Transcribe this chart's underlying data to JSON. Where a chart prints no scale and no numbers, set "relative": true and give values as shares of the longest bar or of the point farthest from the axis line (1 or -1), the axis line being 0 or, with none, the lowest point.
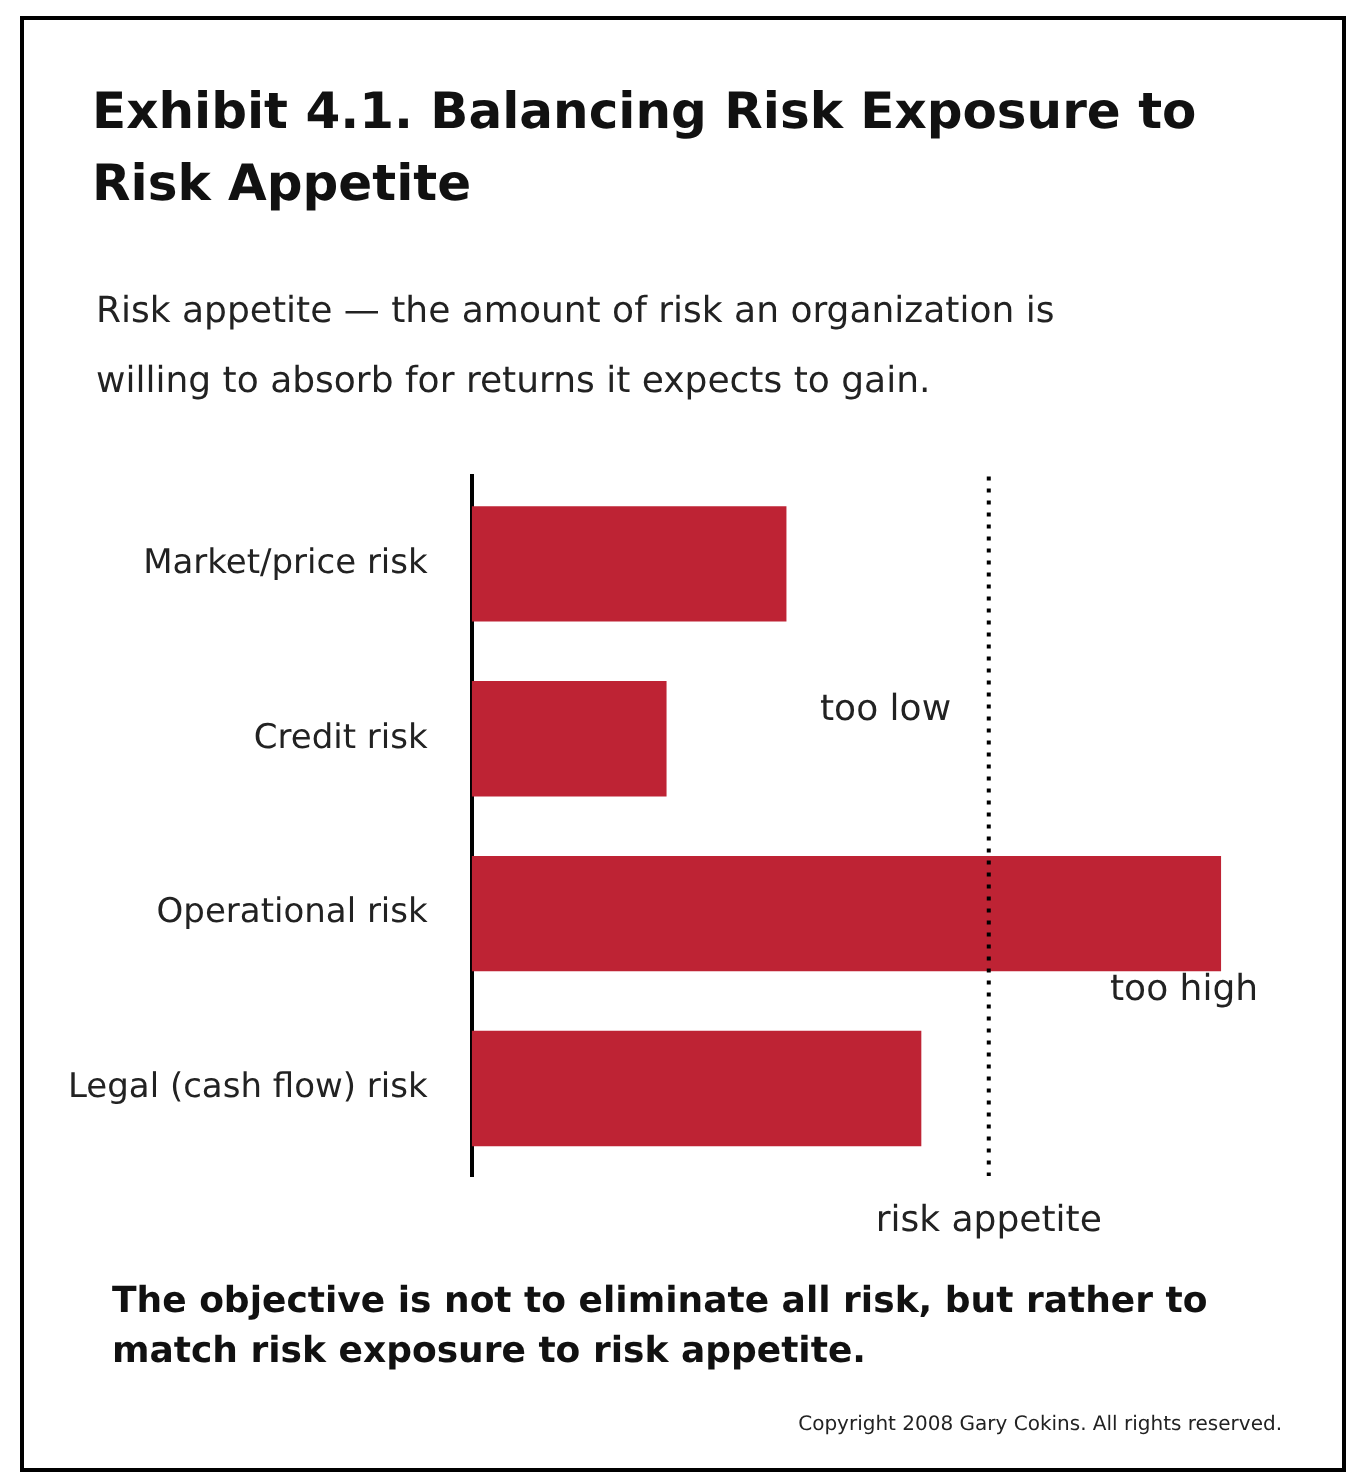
{
  "chart_data": {
    "type": "bar",
    "orientation": "horizontal",
    "relative": true,
    "title": "Exhibit 4.1. Balancing Risk Exposure to Risk Appetite",
    "subtitle": "Risk appetite — the amount of risk an organization is willing to absorb for returns it expects to gain.",
    "categories": [
      "Market/price risk",
      "Credit risk",
      "Operational risk",
      "Legal (cash flow) risk"
    ],
    "values": [
      0.42,
      0.26,
      1,
      0.6
    ],
    "color": "#be2334",
    "legend": false,
    "ref_lines": [
      {
        "axis": "x",
        "value": 0.69,
        "label": "risk appetite",
        "color": "#000000",
        "line_style": "dotted"
      }
    ],
    "annotations": [
      "too low",
      "too high",
      "The objective is not to eliminate all risk, but rather to match risk exposure to risk appetite.",
      "Copyright 2008 Gary Cokins. All rights reserved."
    ]
  }
}
